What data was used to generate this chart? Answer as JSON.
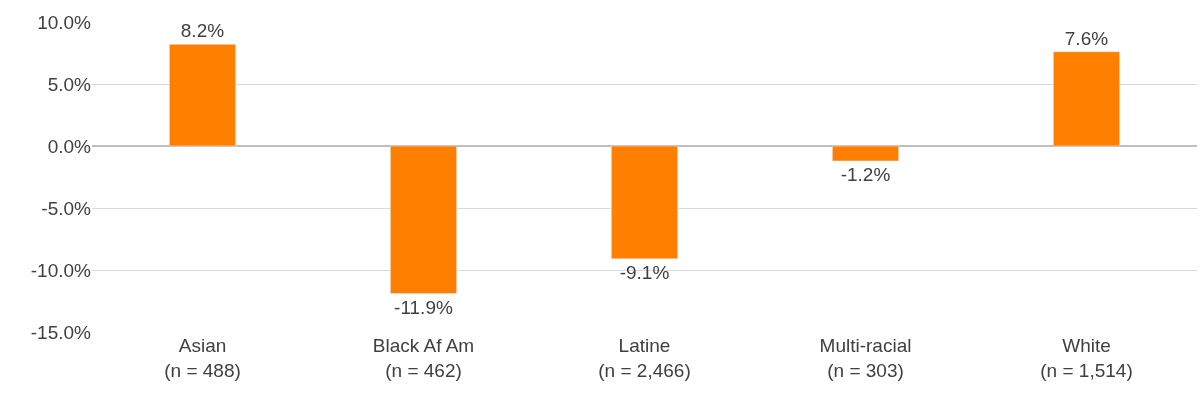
{
  "chart_data": {
    "type": "bar",
    "categories": [
      "Asian\n(n = 488)",
      "Black Af Am\n(n = 462)",
      "Latine\n(n = 2,466)",
      "Multi-racial\n(n = 303)",
      "White\n(n = 1,514)"
    ],
    "values": [
      8.2,
      -11.9,
      -9.1,
      -1.2,
      7.6
    ],
    "value_labels": [
      "8.2%",
      "-11.9%",
      "-9.1%",
      "-1.2%",
      "7.6%"
    ],
    "color": "#ff8000",
    "ylim": [
      -15,
      10
    ],
    "yticks": [
      {
        "value": 10,
        "label": "10.0%"
      },
      {
        "value": 5,
        "label": "5.0%"
      },
      {
        "value": 0,
        "label": "0.0%"
      },
      {
        "value": -5,
        "label": "-5.0%"
      },
      {
        "value": -10,
        "label": "-10.0%"
      },
      {
        "value": -15,
        "label": "-15.0%"
      }
    ],
    "grid": "y",
    "legend": false
  }
}
